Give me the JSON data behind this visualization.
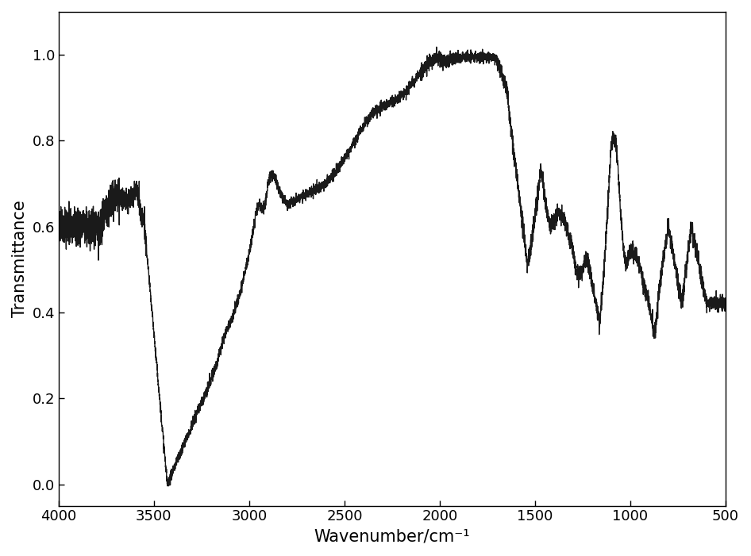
{
  "xlabel": "Wavenumber/cm⁻¹",
  "ylabel": "Transmittance",
  "xlim": [
    4000,
    500
  ],
  "ylim": [
    -0.05,
    1.1
  ],
  "yticks": [
    0.0,
    0.2,
    0.4,
    0.6,
    0.8,
    1.0
  ],
  "xticks": [
    4000,
    3500,
    3000,
    2500,
    2000,
    1500,
    1000,
    500
  ],
  "line_color": "#1a1a1a",
  "line_width": 1.0,
  "background_color": "#ffffff",
  "xlabel_fontsize": 15,
  "ylabel_fontsize": 15,
  "tick_fontsize": 13
}
